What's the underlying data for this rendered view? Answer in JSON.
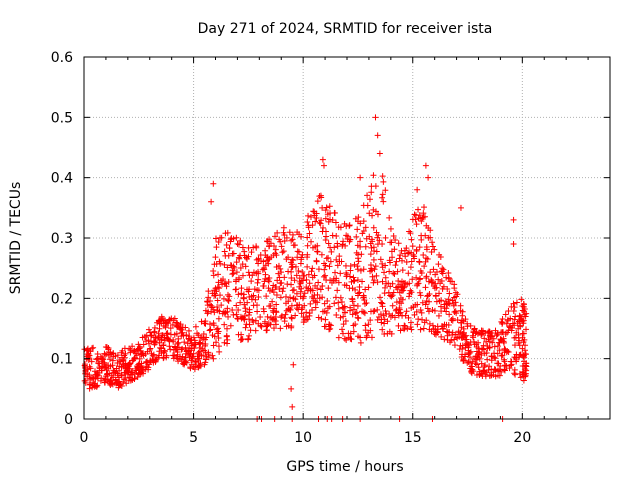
{
  "chart_data": {
    "type": "scatter",
    "title": "Day 271 of 2024, SRMTID for receiver ista",
    "xlabel": "GPS time / hours",
    "ylabel": "SRMTID / TECUs",
    "xlim": [
      0,
      24
    ],
    "ylim": [
      0,
      0.6
    ],
    "xticks": [
      0,
      5,
      10,
      15,
      20
    ],
    "xtick_labels": [
      "0",
      "5",
      "10",
      "15",
      "20"
    ],
    "yticks": [
      0,
      0.1,
      0.2,
      0.3,
      0.4,
      0.5,
      0.6
    ],
    "ytick_labels": [
      "0",
      "0.1",
      "0.2",
      "0.3",
      "0.4",
      "0.5",
      "0.6"
    ],
    "grid": true,
    "marker": "+",
    "series_color": "#ff0000",
    "envelope": {
      "x": [
        0,
        0.5,
        1,
        1.5,
        2,
        2.5,
        3,
        3.5,
        4,
        4.5,
        5,
        5.5,
        6,
        6.5,
        7,
        7.5,
        8,
        8.5,
        9,
        9.5,
        10,
        10.5,
        11,
        11.5,
        12,
        12.5,
        13,
        13.5,
        14,
        14.5,
        15,
        15.5,
        16,
        16.5,
        17,
        17.5,
        18,
        18.5,
        19,
        19.5,
        20,
        20.2
      ],
      "low": [
        0.05,
        0.05,
        0.06,
        0.05,
        0.06,
        0.07,
        0.08,
        0.1,
        0.1,
        0.09,
        0.08,
        0.09,
        0.1,
        0.12,
        0.13,
        0.13,
        0.14,
        0.15,
        0.15,
        0.15,
        0.16,
        0.17,
        0.15,
        0.14,
        0.12,
        0.12,
        0.13,
        0.14,
        0.14,
        0.13,
        0.14,
        0.15,
        0.14,
        0.13,
        0.12,
        0.08,
        0.07,
        0.07,
        0.07,
        0.08,
        0.06,
        0.06
      ],
      "high": [
        0.12,
        0.12,
        0.12,
        0.11,
        0.12,
        0.13,
        0.15,
        0.17,
        0.17,
        0.16,
        0.15,
        0.17,
        0.3,
        0.32,
        0.3,
        0.29,
        0.29,
        0.3,
        0.32,
        0.31,
        0.32,
        0.36,
        0.38,
        0.34,
        0.33,
        0.34,
        0.38,
        0.45,
        0.32,
        0.28,
        0.34,
        0.36,
        0.3,
        0.25,
        0.22,
        0.16,
        0.15,
        0.15,
        0.16,
        0.19,
        0.2,
        0.18
      ]
    },
    "points_per_segment": 46,
    "outliers": [
      [
        5.9,
        0.39
      ],
      [
        5.8,
        0.36
      ],
      [
        10.9,
        0.43
      ],
      [
        10.95,
        0.42
      ],
      [
        12.6,
        0.4
      ],
      [
        13.3,
        0.5
      ],
      [
        13.4,
        0.47
      ],
      [
        13.5,
        0.44
      ],
      [
        15.6,
        0.42
      ],
      [
        15.7,
        0.4
      ],
      [
        15.2,
        0.38
      ],
      [
        9.5,
        0.02
      ],
      [
        9.45,
        0.05
      ],
      [
        9.55,
        0.09
      ],
      [
        19.6,
        0.33
      ],
      [
        19.6,
        0.29
      ],
      [
        17.2,
        0.35
      ]
    ],
    "zero_points": [
      7.9,
      8.1,
      8.7,
      9.5,
      10.7,
      11.1,
      11.3,
      11.8,
      12.6,
      14.4,
      15.9,
      19.1
    ]
  }
}
